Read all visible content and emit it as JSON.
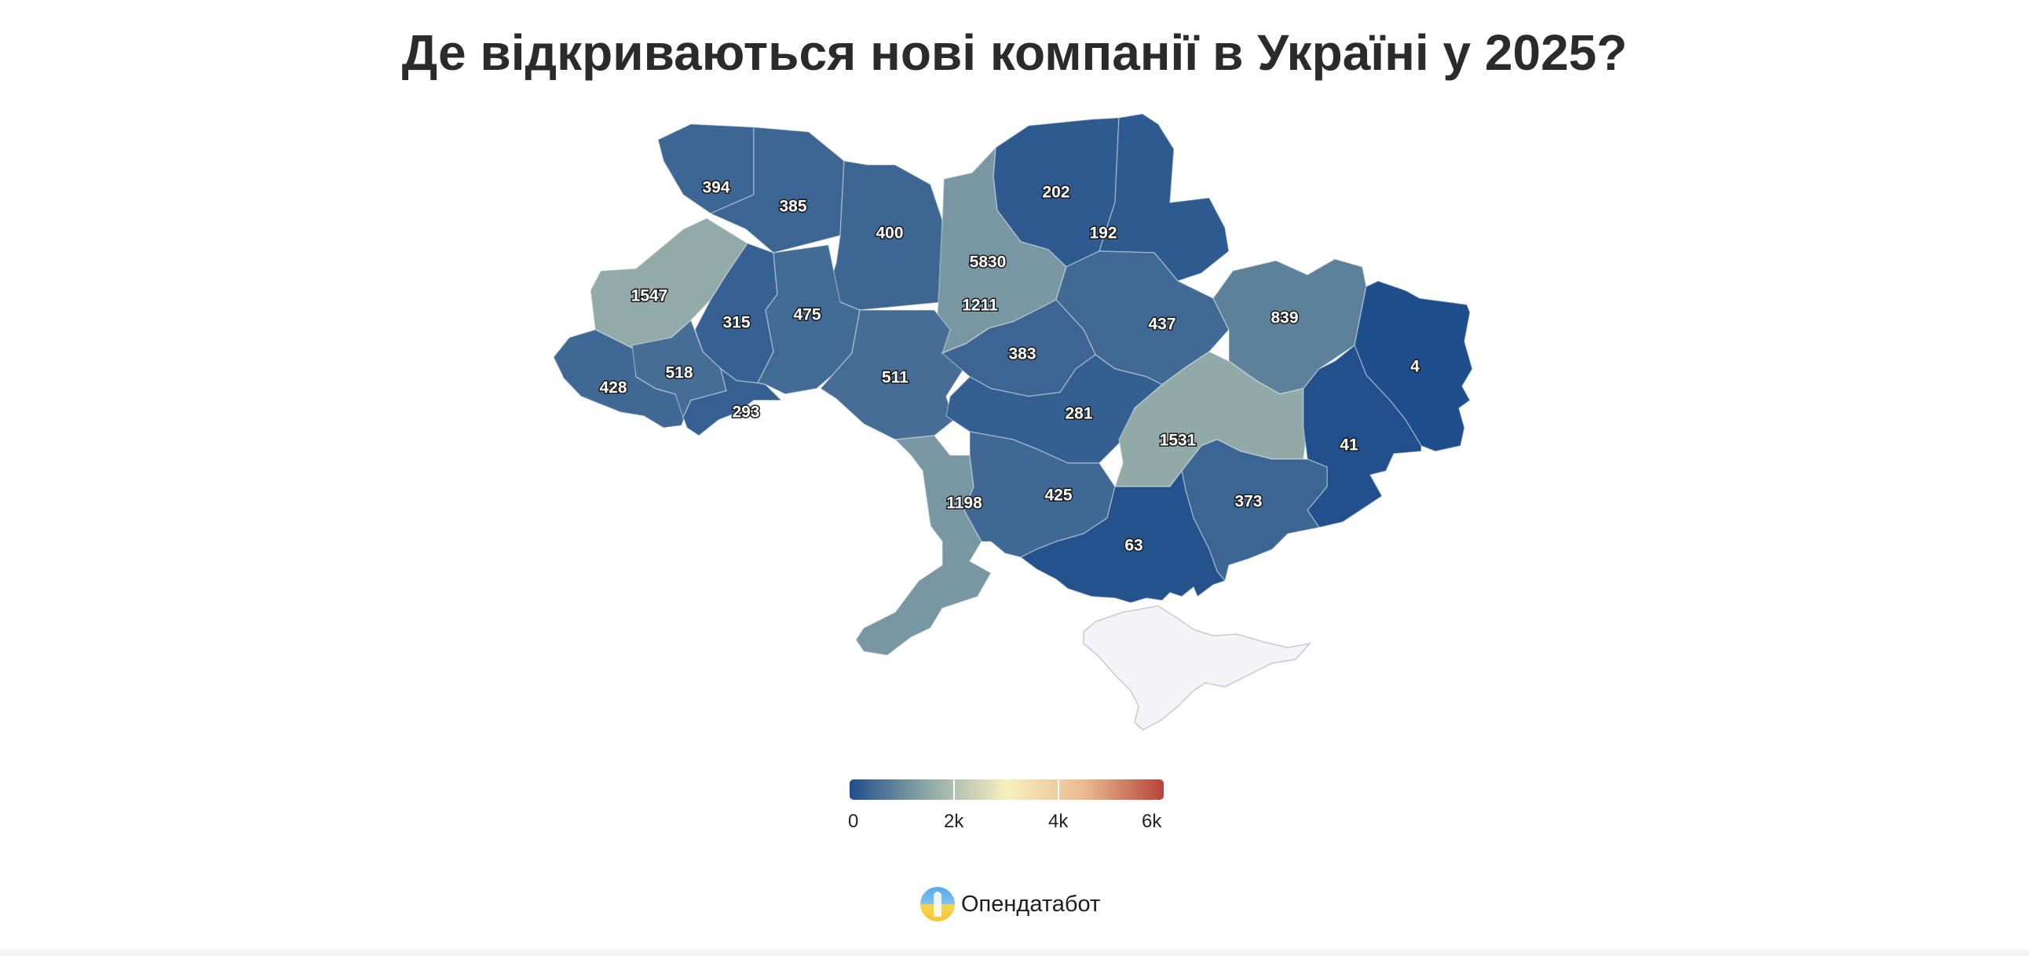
{
  "title": "Де відкриваються нові компанії в Україні у 2025?",
  "map_data": {
    "type": "choropleth",
    "regions": [
      {
        "value": 394,
        "label": "394"
      },
      {
        "value": 385,
        "label": "385"
      },
      {
        "value": 400,
        "label": "400"
      },
      {
        "value": 202,
        "label": "202"
      },
      {
        "value": 192,
        "label": "192"
      },
      {
        "value": 5830,
        "label": "5830"
      },
      {
        "value": 1211,
        "label": "1211"
      },
      {
        "value": 1547,
        "label": "1547"
      },
      {
        "value": 315,
        "label": "315"
      },
      {
        "value": 475,
        "label": "475"
      },
      {
        "value": 437,
        "label": "437"
      },
      {
        "value": 839,
        "label": "839"
      },
      {
        "value": 4,
        "label": "4"
      },
      {
        "value": 428,
        "label": "428"
      },
      {
        "value": 518,
        "label": "518"
      },
      {
        "value": 293,
        "label": "293"
      },
      {
        "value": 511,
        "label": "511"
      },
      {
        "value": 383,
        "label": "383"
      },
      {
        "value": 281,
        "label": "281"
      },
      {
        "value": 1531,
        "label": "1531"
      },
      {
        "value": 41,
        "label": "41"
      },
      {
        "value": 1198,
        "label": "1198"
      },
      {
        "value": 425,
        "label": "425"
      },
      {
        "value": 373,
        "label": "373"
      },
      {
        "value": 63,
        "label": "63"
      }
    ],
    "no_data_color": "#f4f4f6",
    "color_scale": {
      "min": 0,
      "max": 6000,
      "stops": [
        "#1f4e8c",
        "#8fa9a7",
        "#f7f0bf",
        "#e9b98e",
        "#b8433a"
      ]
    }
  },
  "legend": {
    "ticks": [
      "0",
      "2k",
      "4k",
      "6k"
    ]
  },
  "brand": {
    "name": "Опендатабот"
  }
}
